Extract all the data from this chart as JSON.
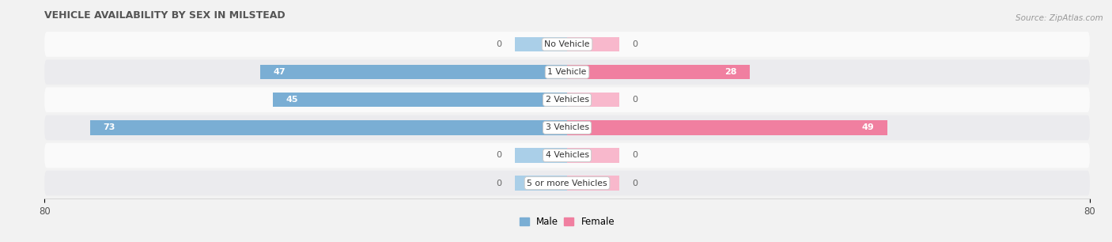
{
  "title": "Vehicle Availability by Sex in Milstead",
  "source": "Source: ZipAtlas.com",
  "categories": [
    "No Vehicle",
    "1 Vehicle",
    "2 Vehicles",
    "3 Vehicles",
    "4 Vehicles",
    "5 or more Vehicles"
  ],
  "male_values": [
    0,
    47,
    45,
    73,
    0,
    0
  ],
  "female_values": [
    0,
    28,
    0,
    49,
    0,
    0
  ],
  "male_color": "#7aaed4",
  "female_color": "#f07fa0",
  "male_color_light": "#aacfe8",
  "female_color_light": "#f8b8cc",
  "label_color_inside": "#ffffff",
  "label_color_outside": "#666666",
  "axis_limit": 80,
  "background_color": "#f2f2f2",
  "row_bg_light": "#fafafa",
  "row_bg_dark": "#ebebee",
  "bar_height": 0.52,
  "stub_size": 8,
  "legend_male": "Male",
  "legend_female": "Female",
  "tick_label_size": 8.5,
  "title_fontsize": 9,
  "source_fontsize": 7.5,
  "label_fontsize": 8,
  "cat_fontsize": 7.8
}
